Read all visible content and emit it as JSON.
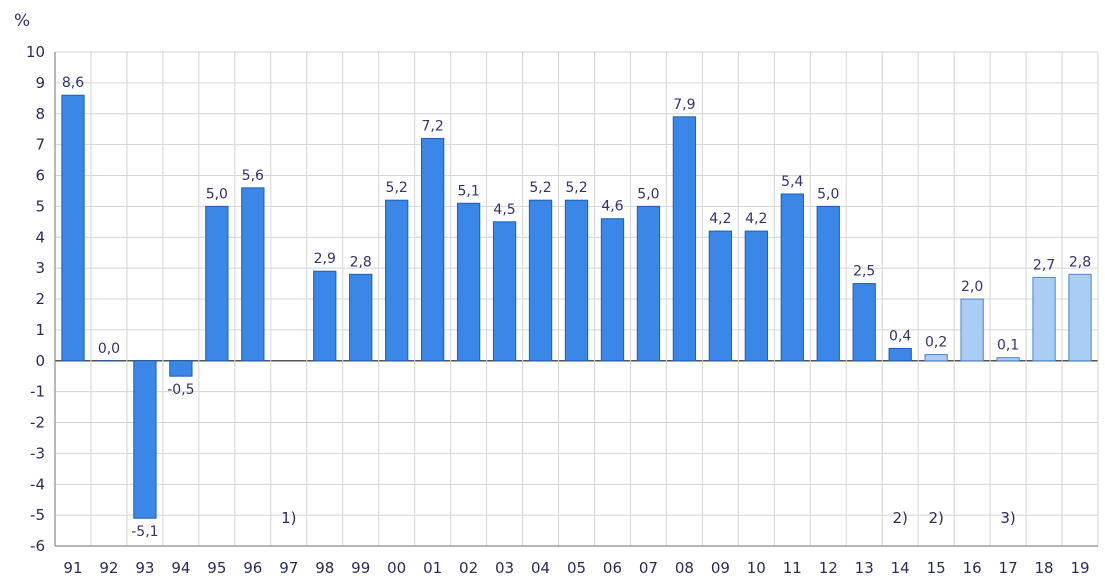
{
  "chart_data": {
    "type": "bar",
    "unit_label": "%",
    "categories": [
      "91",
      "92",
      "93",
      "94",
      "95",
      "96",
      "97",
      "98",
      "99",
      "00",
      "01",
      "02",
      "03",
      "04",
      "05",
      "06",
      "07",
      "08",
      "09",
      "10",
      "11",
      "12",
      "13",
      "14",
      "15",
      "16",
      "17",
      "18",
      "19"
    ],
    "values": [
      8.6,
      0.0,
      -5.1,
      -0.5,
      5.0,
      5.6,
      null,
      2.9,
      2.8,
      5.2,
      7.2,
      5.1,
      4.5,
      5.2,
      5.2,
      4.6,
      5.0,
      7.9,
      4.2,
      4.2,
      5.4,
      5.0,
      2.5,
      0.4,
      0.2,
      2.0,
      0.1,
      2.7,
      2.8
    ],
    "value_labels": [
      "8,6",
      "0,0",
      "-5,1",
      "-0,5",
      "5,0",
      "5,6",
      "",
      "2,9",
      "2,8",
      "5,2",
      "7,2",
      "5,1",
      "4,5",
      "5,2",
      "5,2",
      "4,6",
      "5,0",
      "7,9",
      "4,2",
      "4,2",
      "5,4",
      "5,0",
      "2,5",
      "0,4",
      "0,2",
      "2,0",
      "0,1",
      "2,7",
      "2,8"
    ],
    "forecast": [
      false,
      false,
      false,
      false,
      false,
      false,
      false,
      false,
      false,
      false,
      false,
      false,
      false,
      false,
      false,
      false,
      false,
      false,
      false,
      false,
      false,
      false,
      false,
      false,
      true,
      true,
      true,
      true,
      true
    ],
    "notes": [
      {
        "category": "97",
        "text": "1)"
      },
      {
        "category": "14",
        "text": "2)"
      },
      {
        "category": "15",
        "text": "2)"
      },
      {
        "category": "17",
        "text": "3)"
      }
    ],
    "ylim": [
      -6,
      10
    ],
    "yticks": [
      10,
      9,
      8,
      7,
      6,
      5,
      4,
      3,
      2,
      1,
      0,
      -1,
      -2,
      -3,
      -4,
      -5,
      -6
    ],
    "grid": true,
    "colors": {
      "bar": "#3a87e8",
      "bar_edge": "#1e5fb0",
      "forecast_bar": "#a9cdf4",
      "forecast_edge": "#4f86c6",
      "grid": "#d4d4d4",
      "axis": "#8a8a8a",
      "zero_line": "#555555"
    }
  }
}
